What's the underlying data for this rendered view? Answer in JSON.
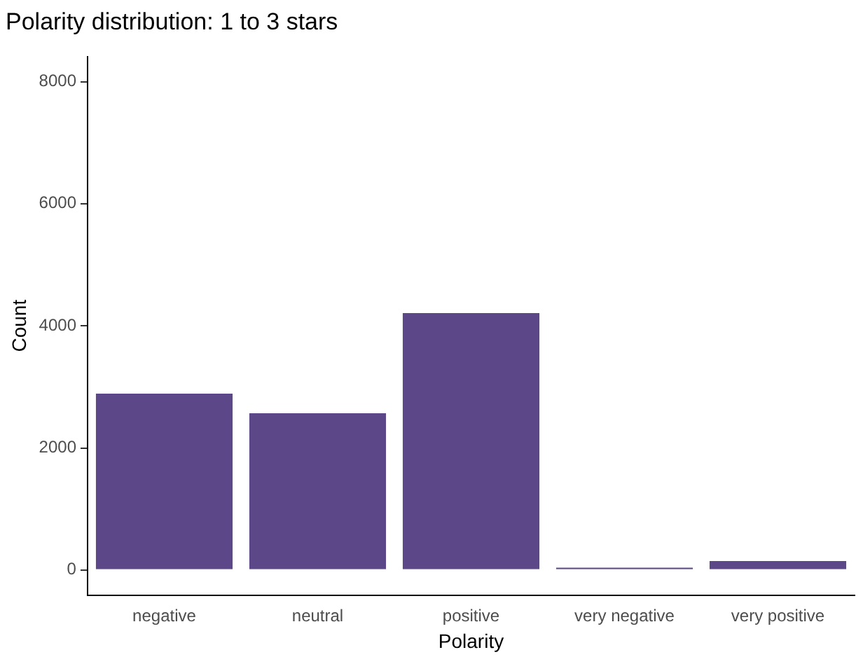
{
  "chart_data": {
    "type": "bar",
    "title": "Polarity distribution: 1 to 3 stars",
    "xlabel": "Polarity",
    "ylabel": "Count",
    "categories": [
      "negative",
      "neutral",
      "positive",
      "very negative",
      "very positive"
    ],
    "values": [
      2900,
      2580,
      4220,
      50,
      160
    ],
    "color": "#5c4888",
    "ylim": [
      -410,
      8410
    ],
    "yticks": [
      0,
      2000,
      4000,
      6000,
      8000
    ],
    "grid": false,
    "legend": false
  }
}
